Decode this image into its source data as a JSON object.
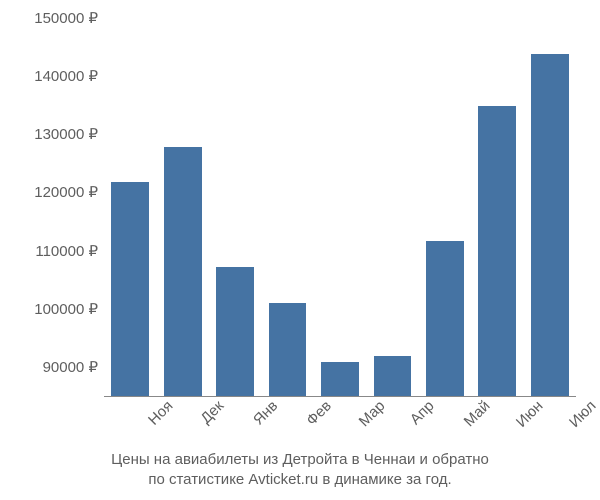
{
  "chart": {
    "type": "bar",
    "background_color": "#ffffff",
    "bar_color": "#4573a3",
    "axis_font_size": 15,
    "text_color": "#5e5e5e",
    "y_axis": {
      "min": 85000,
      "max": 150000,
      "ticks": [
        90000,
        100000,
        110000,
        120000,
        130000,
        140000,
        150000
      ],
      "labels": [
        "90000 ₽",
        "100000 ₽",
        "110000 ₽",
        "120000 ₽",
        "130000 ₽",
        "140000 ₽",
        "150000 ₽"
      ]
    },
    "categories": [
      "Ноя",
      "Дек",
      "Янв",
      "Фев",
      "Мар",
      "Апр",
      "Май",
      "Июн",
      "Июл"
    ],
    "values": [
      121800,
      127800,
      107200,
      101000,
      90800,
      91800,
      111600,
      134800,
      143800
    ],
    "bar_width_ratio": 0.72,
    "x_label_rotation_deg": -45
  },
  "caption": {
    "line1": "Цены на авиабилеты из Детройта в Ченнаи и обратно",
    "line2": "по статистике Avticket.ru в динамике за год."
  }
}
